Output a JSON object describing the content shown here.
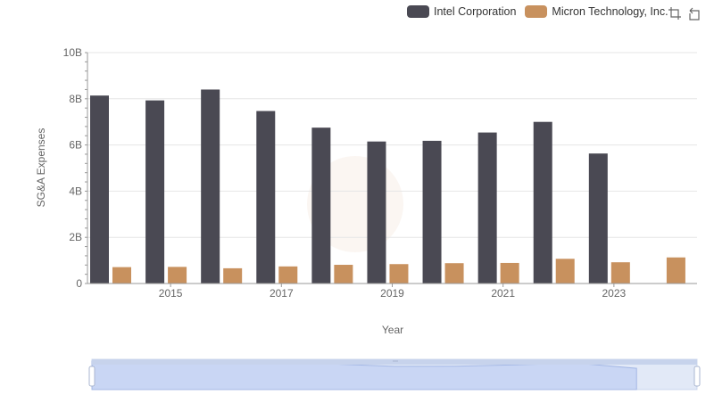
{
  "legend": {
    "items": [
      {
        "label": "Intel Corporation",
        "color": "#4a4953"
      },
      {
        "label": "Micron Technology, Inc.",
        "color": "#c8915e"
      }
    ]
  },
  "toolbox": {
    "icons": [
      "zoom-icon",
      "restore-icon"
    ]
  },
  "chart_data": {
    "type": "bar",
    "ylabel": "SG&A Expenses",
    "xlabel": "Year",
    "ylim": [
      0,
      10000000000
    ],
    "yticks": [
      "0",
      "2B",
      "4B",
      "6B",
      "8B",
      "10B"
    ],
    "categories": [
      "2014",
      "2015",
      "2016",
      "2017",
      "2018",
      "2019",
      "2020",
      "2021",
      "2022",
      "2023",
      "2024"
    ],
    "xtick_labels": [
      "2015",
      "2017",
      "2019",
      "2021",
      "2023"
    ],
    "series": [
      {
        "name": "Intel Corporation",
        "color": "#4a4953",
        "values": [
          8140000000,
          7930000000,
          8400000000,
          7470000000,
          6750000000,
          6150000000,
          6180000000,
          6540000000,
          7000000000,
          5630000000,
          null
        ]
      },
      {
        "name": "Micron Technology, Inc.",
        "color": "#c8915e",
        "values": [
          710000000,
          720000000,
          660000000,
          740000000,
          810000000,
          840000000,
          880000000,
          890000000,
          1070000000,
          920000000,
          1130000000
        ]
      }
    ],
    "grid": true,
    "legend_position": "top-right",
    "datazoom": true
  }
}
